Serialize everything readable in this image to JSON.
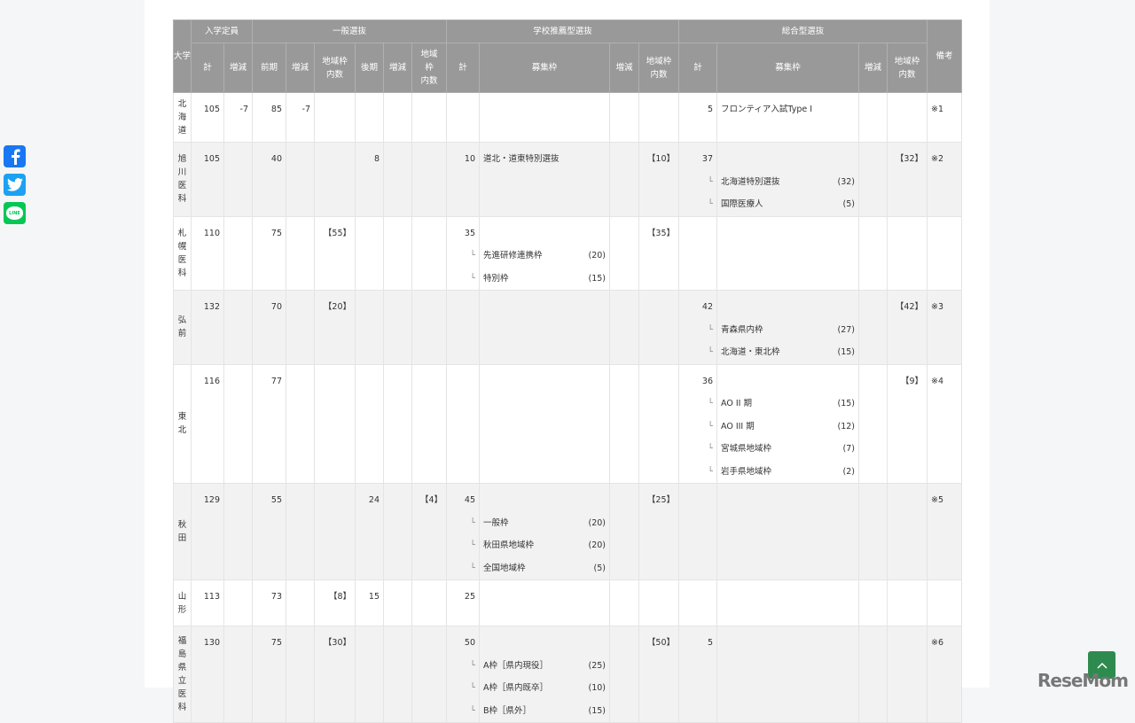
{
  "header": {
    "university": "大学",
    "capacity": "入学定員",
    "general": "一般選抜",
    "recommendation": "学校推薦型選抜",
    "comprehensive": "総合型選抜",
    "note": "備考",
    "sub": {
      "total": "計",
      "change": "増減",
      "first": "前期",
      "regional": "地域枠\n内数",
      "regional_narrow": "地域\n枠\n内数",
      "late": "後期",
      "frame": "募集枠"
    }
  },
  "sub_marker": "└",
  "rows": [
    {
      "name": "北海道",
      "cap_total": "105",
      "cap_change": "-7",
      "gen_first": "85",
      "gen_first_change": "-7",
      "gen_first_regional": "",
      "gen_late": "",
      "gen_late_change": "",
      "gen_late_regional": "",
      "rec_total": "",
      "rec_main": "",
      "rec_items": [],
      "rec_change": "",
      "rec_regional": "",
      "comp_total": "5",
      "comp_main": "フロンティア入試Type I",
      "comp_items": [],
      "comp_change": "",
      "comp_regional": "",
      "note": "※1"
    },
    {
      "name": "旭川医科",
      "cap_total": "105",
      "cap_change": "",
      "gen_first": "40",
      "gen_first_change": "",
      "gen_first_regional": "",
      "gen_late": "8",
      "gen_late_change": "",
      "gen_late_regional": "",
      "rec_total": "10",
      "rec_main": "道北・道東特別選抜",
      "rec_items": [],
      "rec_change": "",
      "rec_regional": "【10】",
      "comp_total": "37",
      "comp_main": "",
      "comp_items": [
        {
          "name": "北海道特別選抜",
          "count": "(32)"
        },
        {
          "name": "国際医療人",
          "count": "(5)"
        }
      ],
      "comp_change": "",
      "comp_regional": "【32】",
      "note": "※2"
    },
    {
      "name": "札幌医科",
      "cap_total": "110",
      "cap_change": "",
      "gen_first": "75",
      "gen_first_change": "",
      "gen_first_regional": "【55】",
      "gen_late": "",
      "gen_late_change": "",
      "gen_late_regional": "",
      "rec_total": "35",
      "rec_main": "",
      "rec_items": [
        {
          "name": "先進研修連携枠",
          "count": "(20)"
        },
        {
          "name": "特別枠",
          "count": "(15)"
        }
      ],
      "rec_change": "",
      "rec_regional": "【35】",
      "comp_total": "",
      "comp_main": "",
      "comp_items": [],
      "comp_change": "",
      "comp_regional": "",
      "note": ""
    },
    {
      "name": "弘前",
      "cap_total": "132",
      "cap_change": "",
      "gen_first": "70",
      "gen_first_change": "",
      "gen_first_regional": "【20】",
      "gen_late": "",
      "gen_late_change": "",
      "gen_late_regional": "",
      "rec_total": "",
      "rec_main": "",
      "rec_items": [],
      "rec_change": "",
      "rec_regional": "",
      "comp_total": "42",
      "comp_main": "",
      "comp_items": [
        {
          "name": "青森県内枠",
          "count": "(27)"
        },
        {
          "name": "北海道・東北枠",
          "count": "(15)"
        }
      ],
      "comp_change": "",
      "comp_regional": "【42】",
      "note": "※3"
    },
    {
      "name": "東北",
      "cap_total": "116",
      "cap_change": "",
      "gen_first": "77",
      "gen_first_change": "",
      "gen_first_regional": "",
      "gen_late": "",
      "gen_late_change": "",
      "gen_late_regional": "",
      "rec_total": "",
      "rec_main": "",
      "rec_items": [],
      "rec_change": "",
      "rec_regional": "",
      "comp_total": "36",
      "comp_main": "",
      "comp_items": [
        {
          "name": "AO II 期",
          "count": "(15)"
        },
        {
          "name": "AO III 期",
          "count": "(12)"
        },
        {
          "name": "宮城県地域枠",
          "count": "(7)"
        },
        {
          "name": "岩手県地域枠",
          "count": "(2)"
        }
      ],
      "comp_change": "",
      "comp_regional": "【9】",
      "note": "※4"
    },
    {
      "name": "秋田",
      "cap_total": "129",
      "cap_change": "",
      "gen_first": "55",
      "gen_first_change": "",
      "gen_first_regional": "",
      "gen_late": "24",
      "gen_late_change": "",
      "gen_late_regional": "【4】",
      "rec_total": "45",
      "rec_main": "",
      "rec_items": [
        {
          "name": "一般枠",
          "count": "(20)"
        },
        {
          "name": "秋田県地域枠",
          "count": "(20)"
        },
        {
          "name": "全国地域枠",
          "count": "(5)"
        }
      ],
      "rec_change": "",
      "rec_regional": "【25】",
      "comp_total": "",
      "comp_main": "",
      "comp_items": [],
      "comp_change": "",
      "comp_regional": "",
      "note": "※5"
    },
    {
      "name": "山形",
      "cap_total": "113",
      "cap_change": "",
      "gen_first": "73",
      "gen_first_change": "",
      "gen_first_regional": "【8】",
      "gen_late": "15",
      "gen_late_change": "",
      "gen_late_regional": "",
      "rec_total": "25",
      "rec_main": "",
      "rec_items": [],
      "rec_change": "",
      "rec_regional": "",
      "comp_total": "",
      "comp_main": "",
      "comp_items": [],
      "comp_change": "",
      "comp_regional": "",
      "note": ""
    },
    {
      "name": "福島県立医科",
      "cap_total": "130",
      "cap_change": "",
      "gen_first": "75",
      "gen_first_change": "",
      "gen_first_regional": "【30】",
      "gen_late": "",
      "gen_late_change": "",
      "gen_late_regional": "",
      "rec_total": "50",
      "rec_main": "",
      "rec_items": [
        {
          "name": "A枠［県内現役］",
          "count": "(25)"
        },
        {
          "name": "A枠［県内既卒］",
          "count": "(10)"
        },
        {
          "name": "B枠［県外］",
          "count": "(15)"
        }
      ],
      "rec_change": "",
      "rec_regional": "【50】",
      "comp_total": "5",
      "comp_main": "",
      "comp_items": [],
      "comp_change": "",
      "comp_regional": "",
      "note": "※6"
    }
  ],
  "social": {
    "facebook": "facebook-icon",
    "twitter": "twitter-icon",
    "line": "LINE"
  },
  "logo": "ReseMom",
  "colors": {
    "header_bg": "#999999",
    "stripe": "#f2f2f2",
    "totop": "#2e8b4f"
  }
}
